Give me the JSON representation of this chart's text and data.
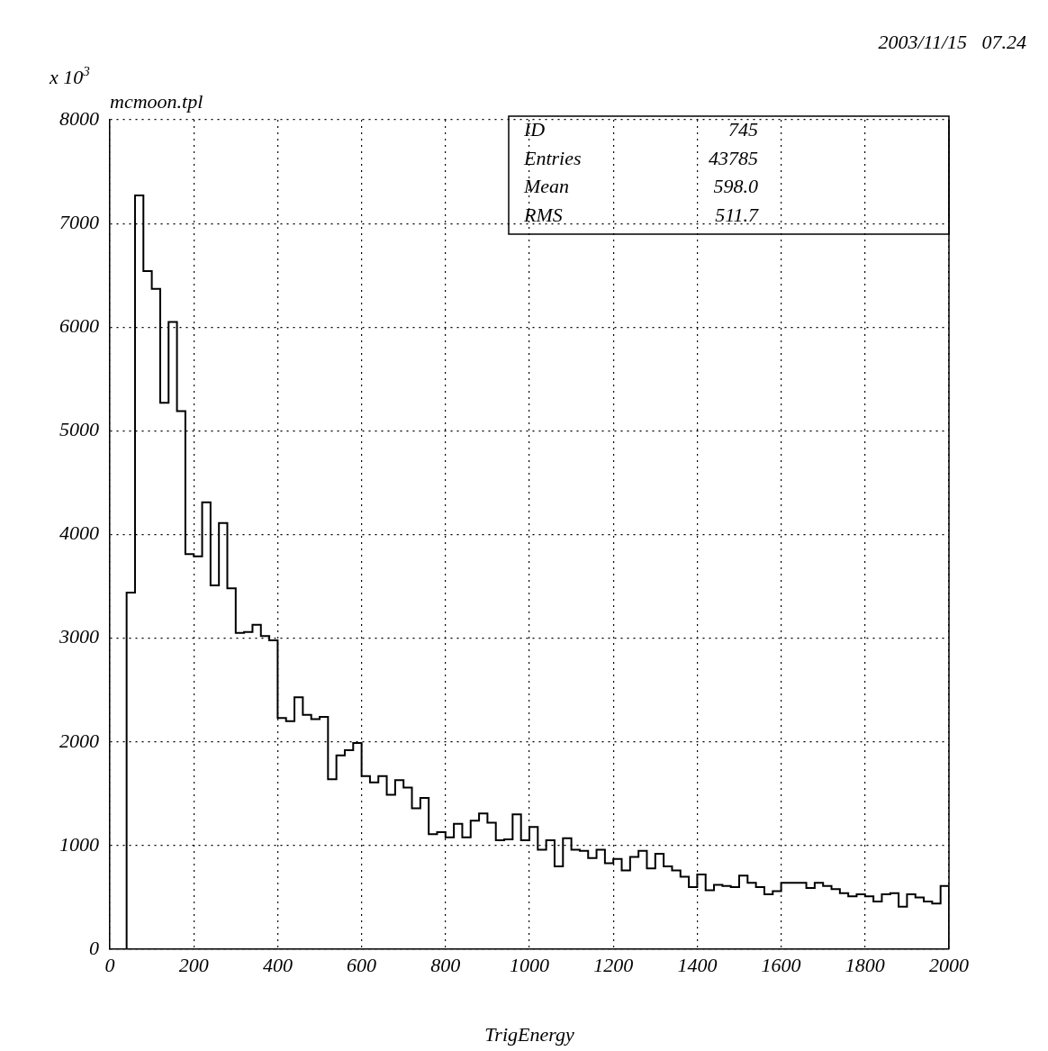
{
  "chart_data": {
    "type": "histogram",
    "title": "mcmoon.tpl",
    "xlabel": "TrigEnergy",
    "annotations": [
      "2003/11/15   07.24",
      "x 10$^{3}$",
      "ID",
      "745",
      "Entries",
      "43785",
      "Mean",
      "598.0",
      "RMS",
      "511.7"
    ],
    "bins": [
      0,
      20,
      40,
      60,
      80,
      100,
      120,
      140,
      160,
      180,
      200,
      220,
      240,
      260,
      280,
      300,
      320,
      340,
      360,
      380,
      400,
      420,
      440,
      460,
      480,
      500,
      520,
      540,
      560,
      580,
      600,
      620,
      640,
      660,
      680,
      700,
      720,
      740,
      760,
      780,
      800,
      820,
      840,
      860,
      880,
      900,
      920,
      940,
      960,
      980,
      1000,
      1020,
      1040,
      1060,
      1080,
      1100,
      1120,
      1140,
      1160,
      1180,
      1200,
      1220,
      1240,
      1260,
      1280,
      1300,
      1320,
      1340,
      1360,
      1380,
      1400,
      1420,
      1440,
      1460,
      1480,
      1500,
      1520,
      1540,
      1560,
      1580,
      1600,
      1620,
      1640,
      1660,
      1680,
      1700,
      1720,
      1740,
      1760,
      1780,
      1800,
      1820,
      1840,
      1860,
      1880,
      1900,
      1920,
      1940,
      1960,
      1980,
      2000
    ],
    "values": [
      0,
      0,
      3440,
      7270,
      6540,
      6370,
      5270,
      6050,
      5190,
      3810,
      3790,
      4310,
      3510,
      4110,
      3480,
      3050,
      3060,
      3130,
      3020,
      2980,
      2230,
      2200,
      2430,
      2260,
      2220,
      2240,
      1640,
      1870,
      1920,
      1990,
      1670,
      1610,
      1670,
      1490,
      1630,
      1560,
      1360,
      1460,
      1110,
      1130,
      1080,
      1210,
      1080,
      1240,
      1310,
      1220,
      1050,
      1060,
      1300,
      1050,
      1180,
      960,
      1050,
      800,
      1070,
      960,
      950,
      880,
      960,
      830,
      870,
      760,
      890,
      950,
      780,
      920,
      800,
      760,
      700,
      600,
      720,
      570,
      620,
      610,
      600,
      710,
      640,
      600,
      530,
      560,
      640,
      640,
      640,
      590,
      640,
      610,
      580,
      540,
      510,
      530,
      510,
      460,
      530,
      540,
      410,
      530,
      500,
      460,
      440,
      610
    ],
    "color": "#000000",
    "xlim": [
      0,
      2000
    ],
    "xticks": [
      0,
      200,
      400,
      600,
      800,
      1000,
      1200,
      1400,
      1600,
      1800,
      2000
    ],
    "ylim": [
      0,
      8000
    ],
    "yticks": [
      0,
      1000,
      2000,
      3000,
      4000,
      5000,
      6000,
      7000,
      8000
    ],
    "grid": true,
    "legend": false
  }
}
